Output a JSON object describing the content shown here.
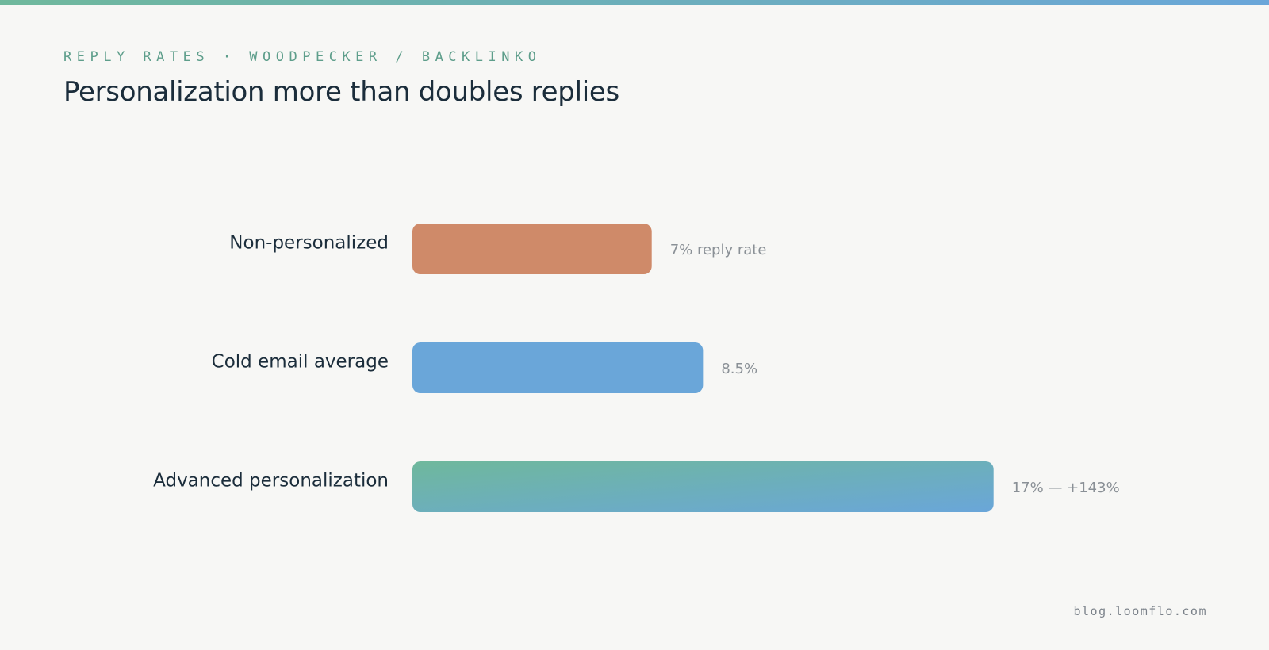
{
  "header": {
    "eyebrow": "REPLY RATES · WOODPECKER / BACKLINKO",
    "title": "Personalization more than doubles replies"
  },
  "footer": {
    "site": "blog.loomflo.com"
  },
  "colors": {
    "background": "#f7f7f5",
    "accent_green": "#6fb89c",
    "accent_blue": "#6aa6d9",
    "bar_orange": "#cf8a69",
    "eyebrow_text": "#5e9e8b",
    "title_text": "#1b2d3b",
    "value_text": "#8a9096",
    "footer_text": "#7a8189"
  },
  "chart_data": {
    "type": "bar",
    "orientation": "horizontal",
    "title": "Personalization more than doubles replies",
    "categories": [
      "Non-personalized",
      "Cold email average",
      "Advanced personalization"
    ],
    "values": [
      7,
      8.5,
      17
    ],
    "unit": "%",
    "value_labels": [
      "7% reply rate",
      "8.5%",
      "17% — +143%"
    ],
    "bar_colors": [
      "#cf8a69",
      "#6aa6d9",
      "gradient:#6fb89c-#6aa6d9"
    ],
    "xlabel": "",
    "ylabel": "",
    "grid": false,
    "legend": "none"
  }
}
